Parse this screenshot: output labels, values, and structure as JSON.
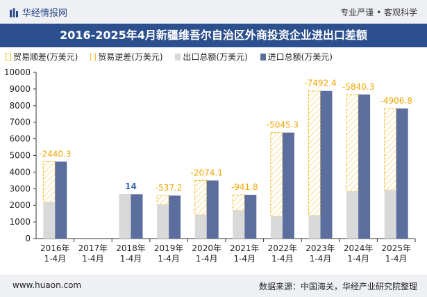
{
  "header": {
    "brand_name": "华经情报网",
    "slogan": "专业严谨 • 客观科学",
    "title": "2016-2025年4月新疆维吾尔自治区外商投资企业进出口差额"
  },
  "footer": {
    "url": "www.huaon.com",
    "source": "数据来源：中国海关，华经产业研究院整理"
  },
  "colors": {
    "export": "#d9d9d9",
    "import": "#5b6e9e",
    "deficit_border": "#f2b51c",
    "surplus_label": "#3f6bb0",
    "deficit_label": "#f0a500",
    "title_bg": "#2c4f8e"
  },
  "chart_data": {
    "type": "bar",
    "legend_position": "top-left",
    "grid": false,
    "ylim": [
      0,
      10000
    ],
    "yticks": [
      0,
      1000,
      2000,
      3000,
      4000,
      5000,
      6000,
      7000,
      8000,
      9000,
      10000
    ],
    "categories": [
      "2016年\n1-4月",
      "2017年\n1-4月",
      "2018年\n1-4月",
      "2019年\n1-4月",
      "2020年\n1-4月",
      "2021年\n1-4月",
      "2022年\n1-4月",
      "2023年\n1-4月",
      "2024年\n1-4月",
      "2025年\n1-4月"
    ],
    "series": [
      {
        "name": "贸易顺差(万美元)",
        "values": [
          null,
          null,
          14,
          null,
          null,
          null,
          null,
          null,
          null,
          null
        ]
      },
      {
        "name": "贸易逆差(万美元)",
        "values": [
          -2440.3,
          null,
          null,
          -537.2,
          -2074.1,
          -941.8,
          -5045.3,
          -7492.4,
          -5840.3,
          -4906.8
        ]
      },
      {
        "name": "出口总额(万美元)",
        "values": [
          2190,
          null,
          2680,
          2050,
          1420,
          1690,
          1330,
          1390,
          2830,
          2920
        ]
      },
      {
        "name": "进口总额(万美元)",
        "values": [
          4630,
          null,
          2666,
          2587,
          3494,
          2632,
          6375,
          8882,
          8670,
          7827
        ]
      }
    ],
    "data_labels": [
      "-2440.3",
      "",
      "14",
      "-537.2",
      "-2074.1",
      "-941.8",
      "-5045.3",
      "-7492.4",
      "-5840.3",
      "-4906.8"
    ]
  }
}
